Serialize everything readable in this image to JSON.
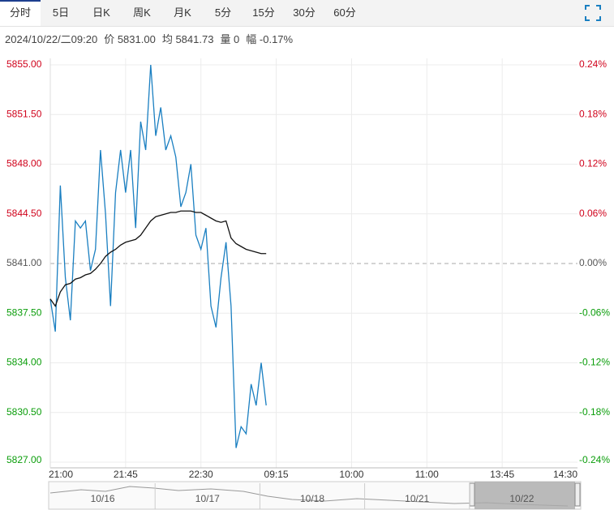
{
  "tabs": [
    "分时",
    "5日",
    "日K",
    "周K",
    "月K",
    "5分",
    "15分",
    "30分",
    "60分"
  ],
  "active_tab": 0,
  "info": [
    "2024/10/22/二09:20",
    "价 5831.00",
    "均 5841.73",
    "量 0",
    "幅 -0.17%"
  ],
  "navigator_dates": [
    "10/16",
    "10/17",
    "10/18",
    "10/21",
    "10/22"
  ],
  "chart_data": {
    "type": "line",
    "categories": [
      "21:00",
      null,
      null,
      null,
      null,
      null,
      null,
      null,
      null,
      null,
      null,
      null,
      null,
      null,
      null,
      "21:45",
      null,
      null,
      null,
      null,
      null,
      null,
      null,
      null,
      null,
      null,
      null,
      null,
      null,
      null,
      "22:30",
      null,
      null,
      null,
      null,
      null,
      null,
      null,
      null,
      null,
      null,
      null,
      null,
      null,
      null,
      "09:15",
      null,
      null,
      null,
      null,
      null,
      null,
      null,
      null,
      null,
      null,
      null,
      null,
      null,
      null,
      "10:00",
      null,
      null,
      null,
      null,
      null,
      null,
      null,
      null,
      null,
      null,
      null,
      null,
      null,
      null,
      "11:00",
      null,
      null,
      null,
      null,
      null,
      null,
      null,
      null,
      null,
      null,
      null,
      null,
      null,
      null,
      "13:45",
      null,
      null,
      null,
      null,
      null,
      null,
      null,
      null,
      null,
      null,
      null,
      null,
      null,
      null,
      "14:30"
    ],
    "series": [
      {
        "color": "#1a7fc1",
        "values": [
          5838.5,
          5836.2,
          5846.5,
          5840.0,
          5837.0,
          5844.0,
          5843.5,
          5844.0,
          5840.5,
          5842.0,
          5849.0,
          5844.5,
          5838.0,
          5846.0,
          5849.0,
          5846.0,
          5849.0,
          5843.5,
          5851.0,
          5849.0,
          5855.0,
          5850.0,
          5852.0,
          5849.0,
          5850.0,
          5848.5,
          5845.0,
          5846.0,
          5848.0,
          5843.0,
          5842.0,
          5843.5,
          5838.0,
          5836.5,
          5840.0,
          5842.5,
          5838.0,
          5828.0,
          5829.5,
          5829.0,
          5832.5,
          5831.0,
          5834.0,
          5831.0,
          null,
          null,
          null,
          null,
          null,
          null,
          null,
          null,
          null,
          null,
          null,
          null,
          null,
          null,
          null,
          null,
          null,
          null,
          null,
          null,
          null,
          null,
          null,
          null,
          null,
          null,
          null,
          null,
          null,
          null,
          null,
          null,
          null,
          null,
          null,
          null,
          null,
          null,
          null,
          null,
          null,
          null,
          null,
          null,
          null,
          null,
          null,
          null,
          null,
          null,
          null,
          null,
          null,
          null,
          null,
          null,
          null,
          null,
          null,
          null,
          null,
          null
        ]
      },
      {
        "color": "#111111",
        "values": [
          5838.5,
          5838.0,
          5839.0,
          5839.5,
          5839.6,
          5839.9,
          5840.0,
          5840.2,
          5840.3,
          5840.6,
          5841.0,
          5841.5,
          5841.8,
          5842.0,
          5842.3,
          5842.5,
          5842.6,
          5842.7,
          5843.0,
          5843.5,
          5844.0,
          5844.3,
          5844.4,
          5844.5,
          5844.6,
          5844.6,
          5844.7,
          5844.7,
          5844.7,
          5844.6,
          5844.6,
          5844.4,
          5844.2,
          5844.0,
          5843.9,
          5844.0,
          5842.8,
          5842.4,
          5842.2,
          5842.0,
          5841.9,
          5841.8,
          5841.7,
          5841.7,
          null,
          null,
          null,
          null,
          null,
          null,
          null,
          null,
          null,
          null,
          null,
          null,
          null,
          null,
          null,
          null,
          null,
          null,
          null,
          null,
          null,
          null,
          null,
          null,
          null,
          null,
          null,
          null,
          null,
          null,
          null,
          null,
          null,
          null,
          null,
          null,
          null,
          null,
          null,
          null,
          null,
          null,
          null,
          null,
          null,
          null,
          null,
          null,
          null,
          null,
          null,
          null,
          null,
          null,
          null,
          null,
          null,
          null,
          null,
          null,
          null,
          null
        ]
      }
    ],
    "ylim": [
      5827,
      5855
    ],
    "yticks": [
      {
        "value": 5855,
        "label": "5855.00"
      },
      {
        "value": 5851.5,
        "label": "5851.50"
      },
      {
        "value": 5848,
        "label": "5848.00"
      },
      {
        "value": 5844.5,
        "label": "5844.50"
      },
      {
        "value": 5841,
        "label": "5841.00"
      },
      {
        "value": 5837.5,
        "label": "5837.50"
      },
      {
        "value": 5834,
        "label": "5834.00"
      },
      {
        "value": 5830.5,
        "label": "5830.50"
      },
      {
        "value": 5827,
        "label": "5827.00"
      }
    ],
    "y2lim": [
      -0.24,
      0.24
    ],
    "y2ticks": [
      {
        "value": 0.24,
        "label": "0.24%"
      },
      {
        "value": 0.18,
        "label": "0.18%"
      },
      {
        "value": 0.12,
        "label": "0.12%"
      },
      {
        "value": 0.06,
        "label": "0.06%"
      },
      {
        "value": 0,
        "label": "0.00%"
      },
      {
        "value": -0.06,
        "label": "-0.06%"
      },
      {
        "value": -0.12,
        "label": "-0.12%"
      },
      {
        "value": -0.18,
        "label": "-0.18%"
      },
      {
        "value": -0.24,
        "label": "-0.24%"
      }
    ],
    "grid": true
  }
}
